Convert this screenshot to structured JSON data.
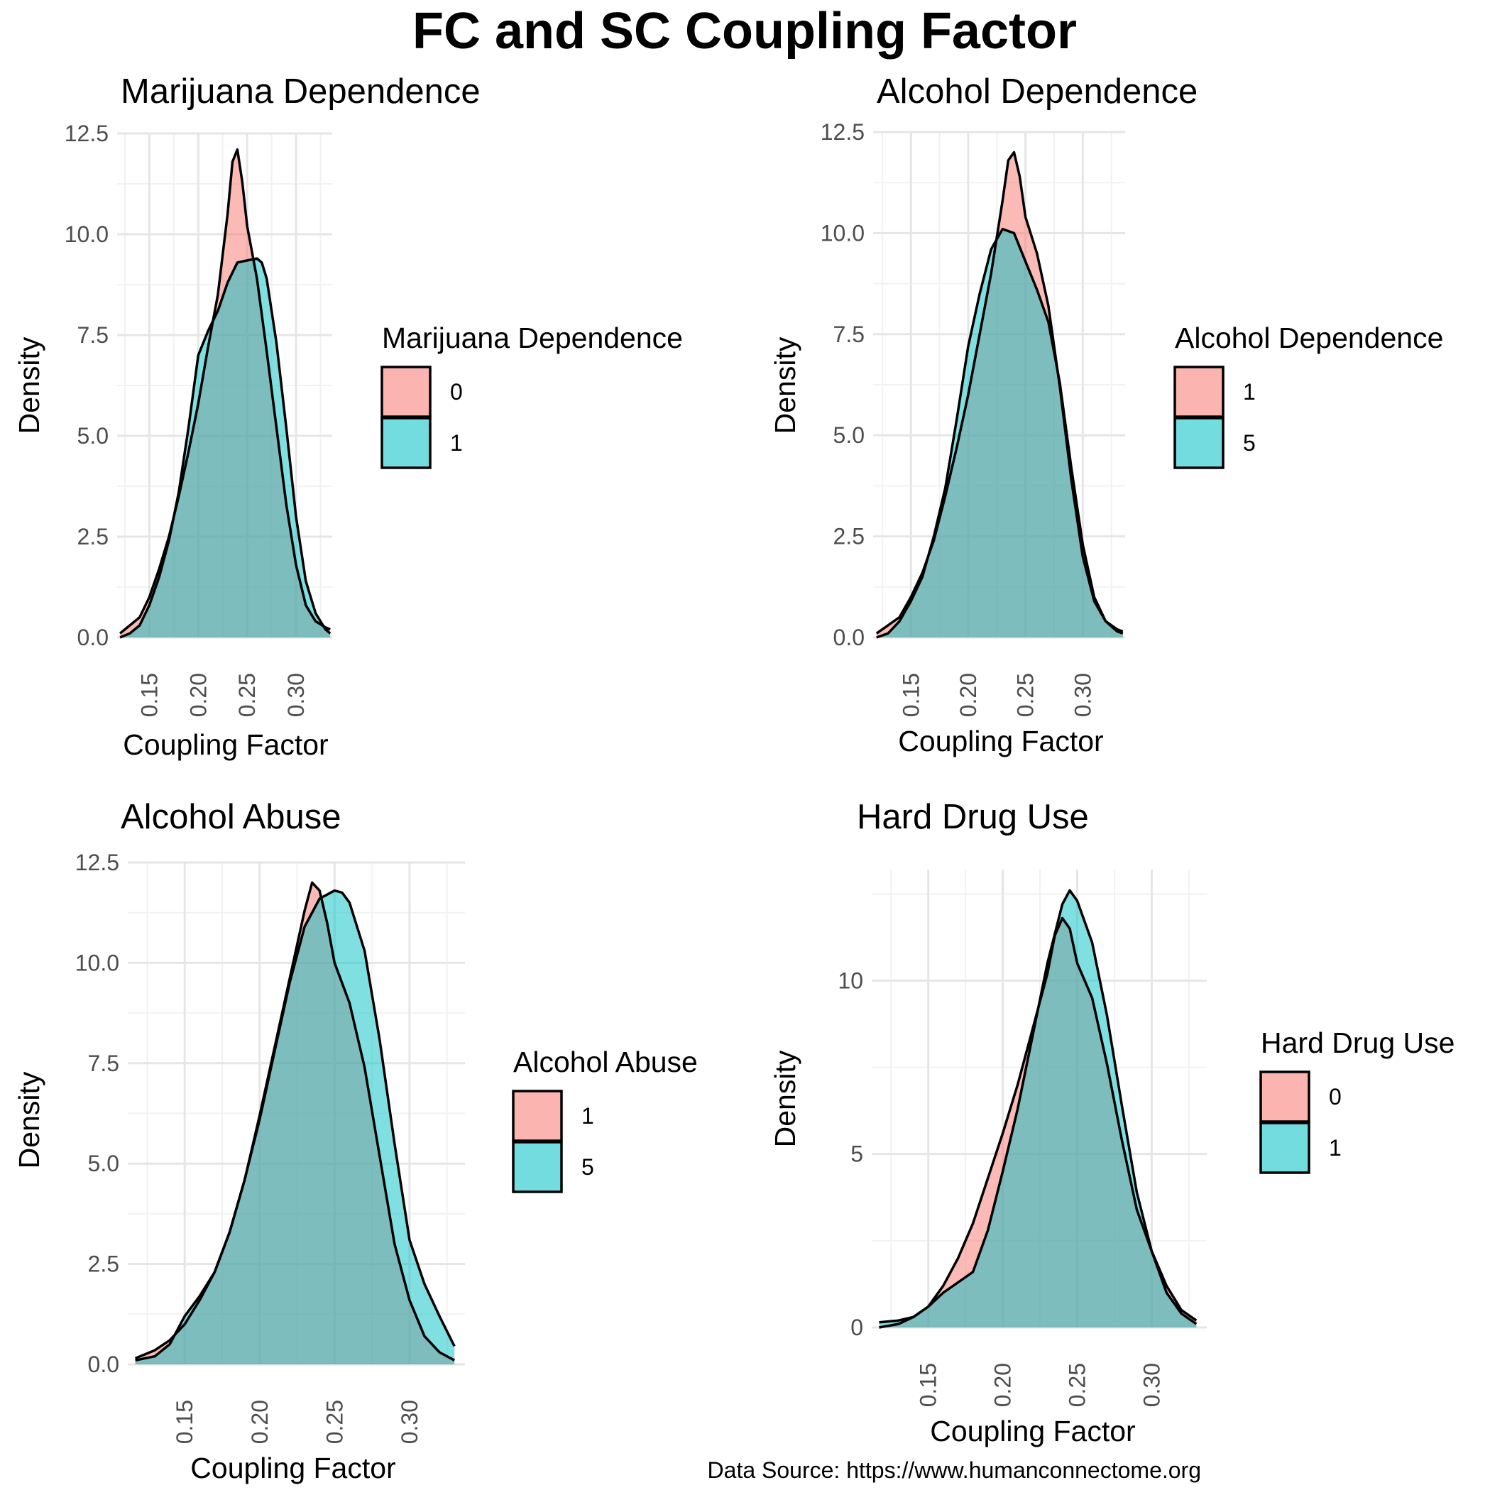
{
  "title": "FC and SC Coupling Factor",
  "source": "Data Source: https://www.humanconnectome.org",
  "colors": {
    "group_a": "#F8766D",
    "group_b": "#00BFC4",
    "outline": "#000000",
    "grid_major": "#e6e6e6",
    "grid_minor": "#f2f2f2"
  },
  "chart_data": [
    {
      "type": "area",
      "subtitle": "Marijuana Dependence",
      "xlabel": "Coupling Factor",
      "ylabel": "Density",
      "xlim": [
        0.117,
        0.337
      ],
      "ylim": [
        0,
        12.5
      ],
      "xticks": [
        "0.15",
        "0.20",
        "0.25",
        "0.30"
      ],
      "xtick_values": [
        0.15,
        0.2,
        0.25,
        0.3
      ],
      "yticks": [
        "0.0",
        "2.5",
        "5.0",
        "7.5",
        "10.0",
        "12.5"
      ],
      "ytick_values": [
        0,
        2.5,
        5,
        7.5,
        10,
        12.5
      ],
      "legend": {
        "title": "Marijuana Dependence",
        "labels": [
          "0",
          "1"
        ],
        "position": "right"
      },
      "series": [
        {
          "name": "0",
          "x": [
            0.12,
            0.13,
            0.14,
            0.15,
            0.16,
            0.17,
            0.18,
            0.19,
            0.2,
            0.21,
            0.22,
            0.23,
            0.235,
            0.24,
            0.245,
            0.25,
            0.26,
            0.27,
            0.28,
            0.29,
            0.3,
            0.31,
            0.32,
            0.33,
            0.335
          ],
          "y": [
            0.1,
            0.3,
            0.5,
            1.0,
            1.7,
            2.5,
            3.5,
            4.6,
            5.8,
            7.2,
            8.5,
            10.5,
            11.8,
            12.1,
            11.3,
            10.2,
            8.9,
            7.1,
            5.2,
            3.3,
            1.8,
            0.8,
            0.4,
            0.25,
            0.2
          ]
        },
        {
          "name": "1",
          "x": [
            0.12,
            0.13,
            0.14,
            0.15,
            0.16,
            0.17,
            0.18,
            0.19,
            0.2,
            0.21,
            0.22,
            0.23,
            0.24,
            0.25,
            0.26,
            0.265,
            0.27,
            0.28,
            0.29,
            0.3,
            0.31,
            0.32,
            0.33,
            0.335
          ],
          "y": [
            0.0,
            0.1,
            0.3,
            0.8,
            1.5,
            2.4,
            3.6,
            5.2,
            7.0,
            7.6,
            8.1,
            8.8,
            9.3,
            9.35,
            9.4,
            9.3,
            8.9,
            7.3,
            5.2,
            3.0,
            1.4,
            0.6,
            0.2,
            0.1
          ]
        }
      ]
    },
    {
      "type": "area",
      "subtitle": "Alcohol Dependence",
      "xlabel": "Coupling Factor",
      "ylabel": "Density",
      "xlim": [
        0.117,
        0.337
      ],
      "ylim": [
        0,
        12.5
      ],
      "xticks": [
        "0.15",
        "0.20",
        "0.25",
        "0.30"
      ],
      "xtick_values": [
        0.15,
        0.2,
        0.25,
        0.3
      ],
      "yticks": [
        "0.0",
        "2.5",
        "5.0",
        "7.5",
        "10.0",
        "12.5"
      ],
      "ytick_values": [
        0,
        2.5,
        5,
        7.5,
        10,
        12.5
      ],
      "legend": {
        "title": "Alcohol Dependence",
        "labels": [
          "1",
          "5"
        ],
        "position": "right"
      },
      "series": [
        {
          "name": "1",
          "x": [
            0.12,
            0.13,
            0.14,
            0.15,
            0.16,
            0.17,
            0.18,
            0.19,
            0.2,
            0.21,
            0.22,
            0.23,
            0.235,
            0.24,
            0.245,
            0.25,
            0.26,
            0.27,
            0.28,
            0.29,
            0.3,
            0.31,
            0.32,
            0.33,
            0.335
          ],
          "y": [
            0.1,
            0.3,
            0.5,
            1.0,
            1.6,
            2.4,
            3.5,
            4.7,
            6.0,
            7.5,
            9.0,
            10.8,
            11.8,
            12.0,
            11.4,
            10.4,
            9.5,
            8.2,
            6.2,
            3.9,
            2.0,
            0.9,
            0.4,
            0.2,
            0.15
          ]
        },
        {
          "name": "5",
          "x": [
            0.12,
            0.13,
            0.14,
            0.15,
            0.16,
            0.17,
            0.18,
            0.19,
            0.2,
            0.21,
            0.22,
            0.23,
            0.24,
            0.25,
            0.26,
            0.27,
            0.28,
            0.29,
            0.3,
            0.31,
            0.32,
            0.33,
            0.335
          ],
          "y": [
            0.0,
            0.1,
            0.4,
            0.9,
            1.5,
            2.5,
            3.7,
            5.4,
            7.2,
            8.5,
            9.6,
            10.1,
            10.0,
            9.3,
            8.6,
            7.8,
            6.3,
            4.2,
            2.3,
            1.0,
            0.4,
            0.15,
            0.1
          ]
        }
      ]
    },
    {
      "type": "area",
      "subtitle": "Alcohol Abuse",
      "xlabel": "Coupling Factor",
      "ylabel": "Density",
      "xlim": [
        0.112,
        0.337
      ],
      "ylim": [
        0,
        12.5
      ],
      "xticks": [
        "0.15",
        "0.20",
        "0.25",
        "0.30"
      ],
      "xtick_values": [
        0.15,
        0.2,
        0.25,
        0.3
      ],
      "yticks": [
        "0.0",
        "2.5",
        "5.0",
        "7.5",
        "10.0",
        "12.5"
      ],
      "ytick_values": [
        0,
        2.5,
        5,
        7.5,
        10,
        12.5
      ],
      "legend": {
        "title": "Alcohol Abuse",
        "labels": [
          "1",
          "5"
        ],
        "position": "right"
      },
      "series": [
        {
          "name": "1",
          "x": [
            0.117,
            0.13,
            0.14,
            0.15,
            0.16,
            0.17,
            0.18,
            0.19,
            0.2,
            0.21,
            0.22,
            0.23,
            0.235,
            0.24,
            0.245,
            0.25,
            0.26,
            0.27,
            0.28,
            0.29,
            0.3,
            0.31,
            0.32,
            0.33
          ],
          "y": [
            0.15,
            0.35,
            0.6,
            1.0,
            1.6,
            2.3,
            3.3,
            4.6,
            6.2,
            7.9,
            9.6,
            11.3,
            12.0,
            11.8,
            11.0,
            10.0,
            9.0,
            7.4,
            5.2,
            3.0,
            1.6,
            0.7,
            0.3,
            0.1
          ]
        },
        {
          "name": "5",
          "x": [
            0.117,
            0.13,
            0.14,
            0.15,
            0.16,
            0.17,
            0.18,
            0.19,
            0.2,
            0.21,
            0.22,
            0.23,
            0.24,
            0.25,
            0.255,
            0.26,
            0.27,
            0.28,
            0.29,
            0.3,
            0.31,
            0.32,
            0.33
          ],
          "y": [
            0.1,
            0.2,
            0.5,
            1.2,
            1.7,
            2.3,
            3.3,
            4.6,
            6.1,
            7.8,
            9.5,
            10.9,
            11.6,
            11.8,
            11.75,
            11.5,
            10.3,
            8.1,
            5.5,
            3.1,
            2.0,
            1.2,
            0.45
          ]
        }
      ]
    },
    {
      "type": "area",
      "subtitle": "Hard Drug Use",
      "xlabel": "Coupling Factor",
      "ylabel": "Density",
      "xlim": [
        0.112,
        0.337
      ],
      "ylim": [
        0,
        13.2
      ],
      "xticks": [
        "0.15",
        "0.20",
        "0.25",
        "0.30"
      ],
      "xtick_values": [
        0.15,
        0.2,
        0.25,
        0.3
      ],
      "yticks": [
        "0",
        "5",
        "10"
      ],
      "ytick_values": [
        0,
        5,
        10
      ],
      "legend": {
        "title": "Hard Drug Use",
        "labels": [
          "0",
          "1"
        ],
        "position": "right"
      },
      "series": [
        {
          "name": "0",
          "x": [
            0.117,
            0.13,
            0.14,
            0.15,
            0.16,
            0.17,
            0.18,
            0.19,
            0.2,
            0.21,
            0.22,
            0.23,
            0.235,
            0.24,
            0.245,
            0.25,
            0.26,
            0.27,
            0.28,
            0.29,
            0.3,
            0.31,
            0.32,
            0.33
          ],
          "y": [
            0.0,
            0.1,
            0.3,
            0.6,
            1.2,
            2.0,
            3.0,
            4.3,
            5.6,
            7.0,
            8.6,
            10.2,
            11.3,
            11.8,
            11.5,
            10.5,
            9.5,
            7.6,
            5.4,
            3.4,
            2.2,
            1.2,
            0.5,
            0.2
          ]
        },
        {
          "name": "1",
          "x": [
            0.117,
            0.13,
            0.14,
            0.15,
            0.16,
            0.17,
            0.18,
            0.19,
            0.2,
            0.21,
            0.22,
            0.23,
            0.24,
            0.245,
            0.25,
            0.26,
            0.27,
            0.28,
            0.29,
            0.3,
            0.31,
            0.32,
            0.33
          ],
          "y": [
            0.15,
            0.2,
            0.3,
            0.6,
            1.0,
            1.3,
            1.6,
            2.8,
            4.5,
            6.3,
            8.4,
            10.5,
            12.2,
            12.6,
            12.3,
            11.1,
            9.0,
            6.4,
            3.9,
            2.2,
            1.0,
            0.4,
            0.1
          ]
        }
      ]
    }
  ]
}
